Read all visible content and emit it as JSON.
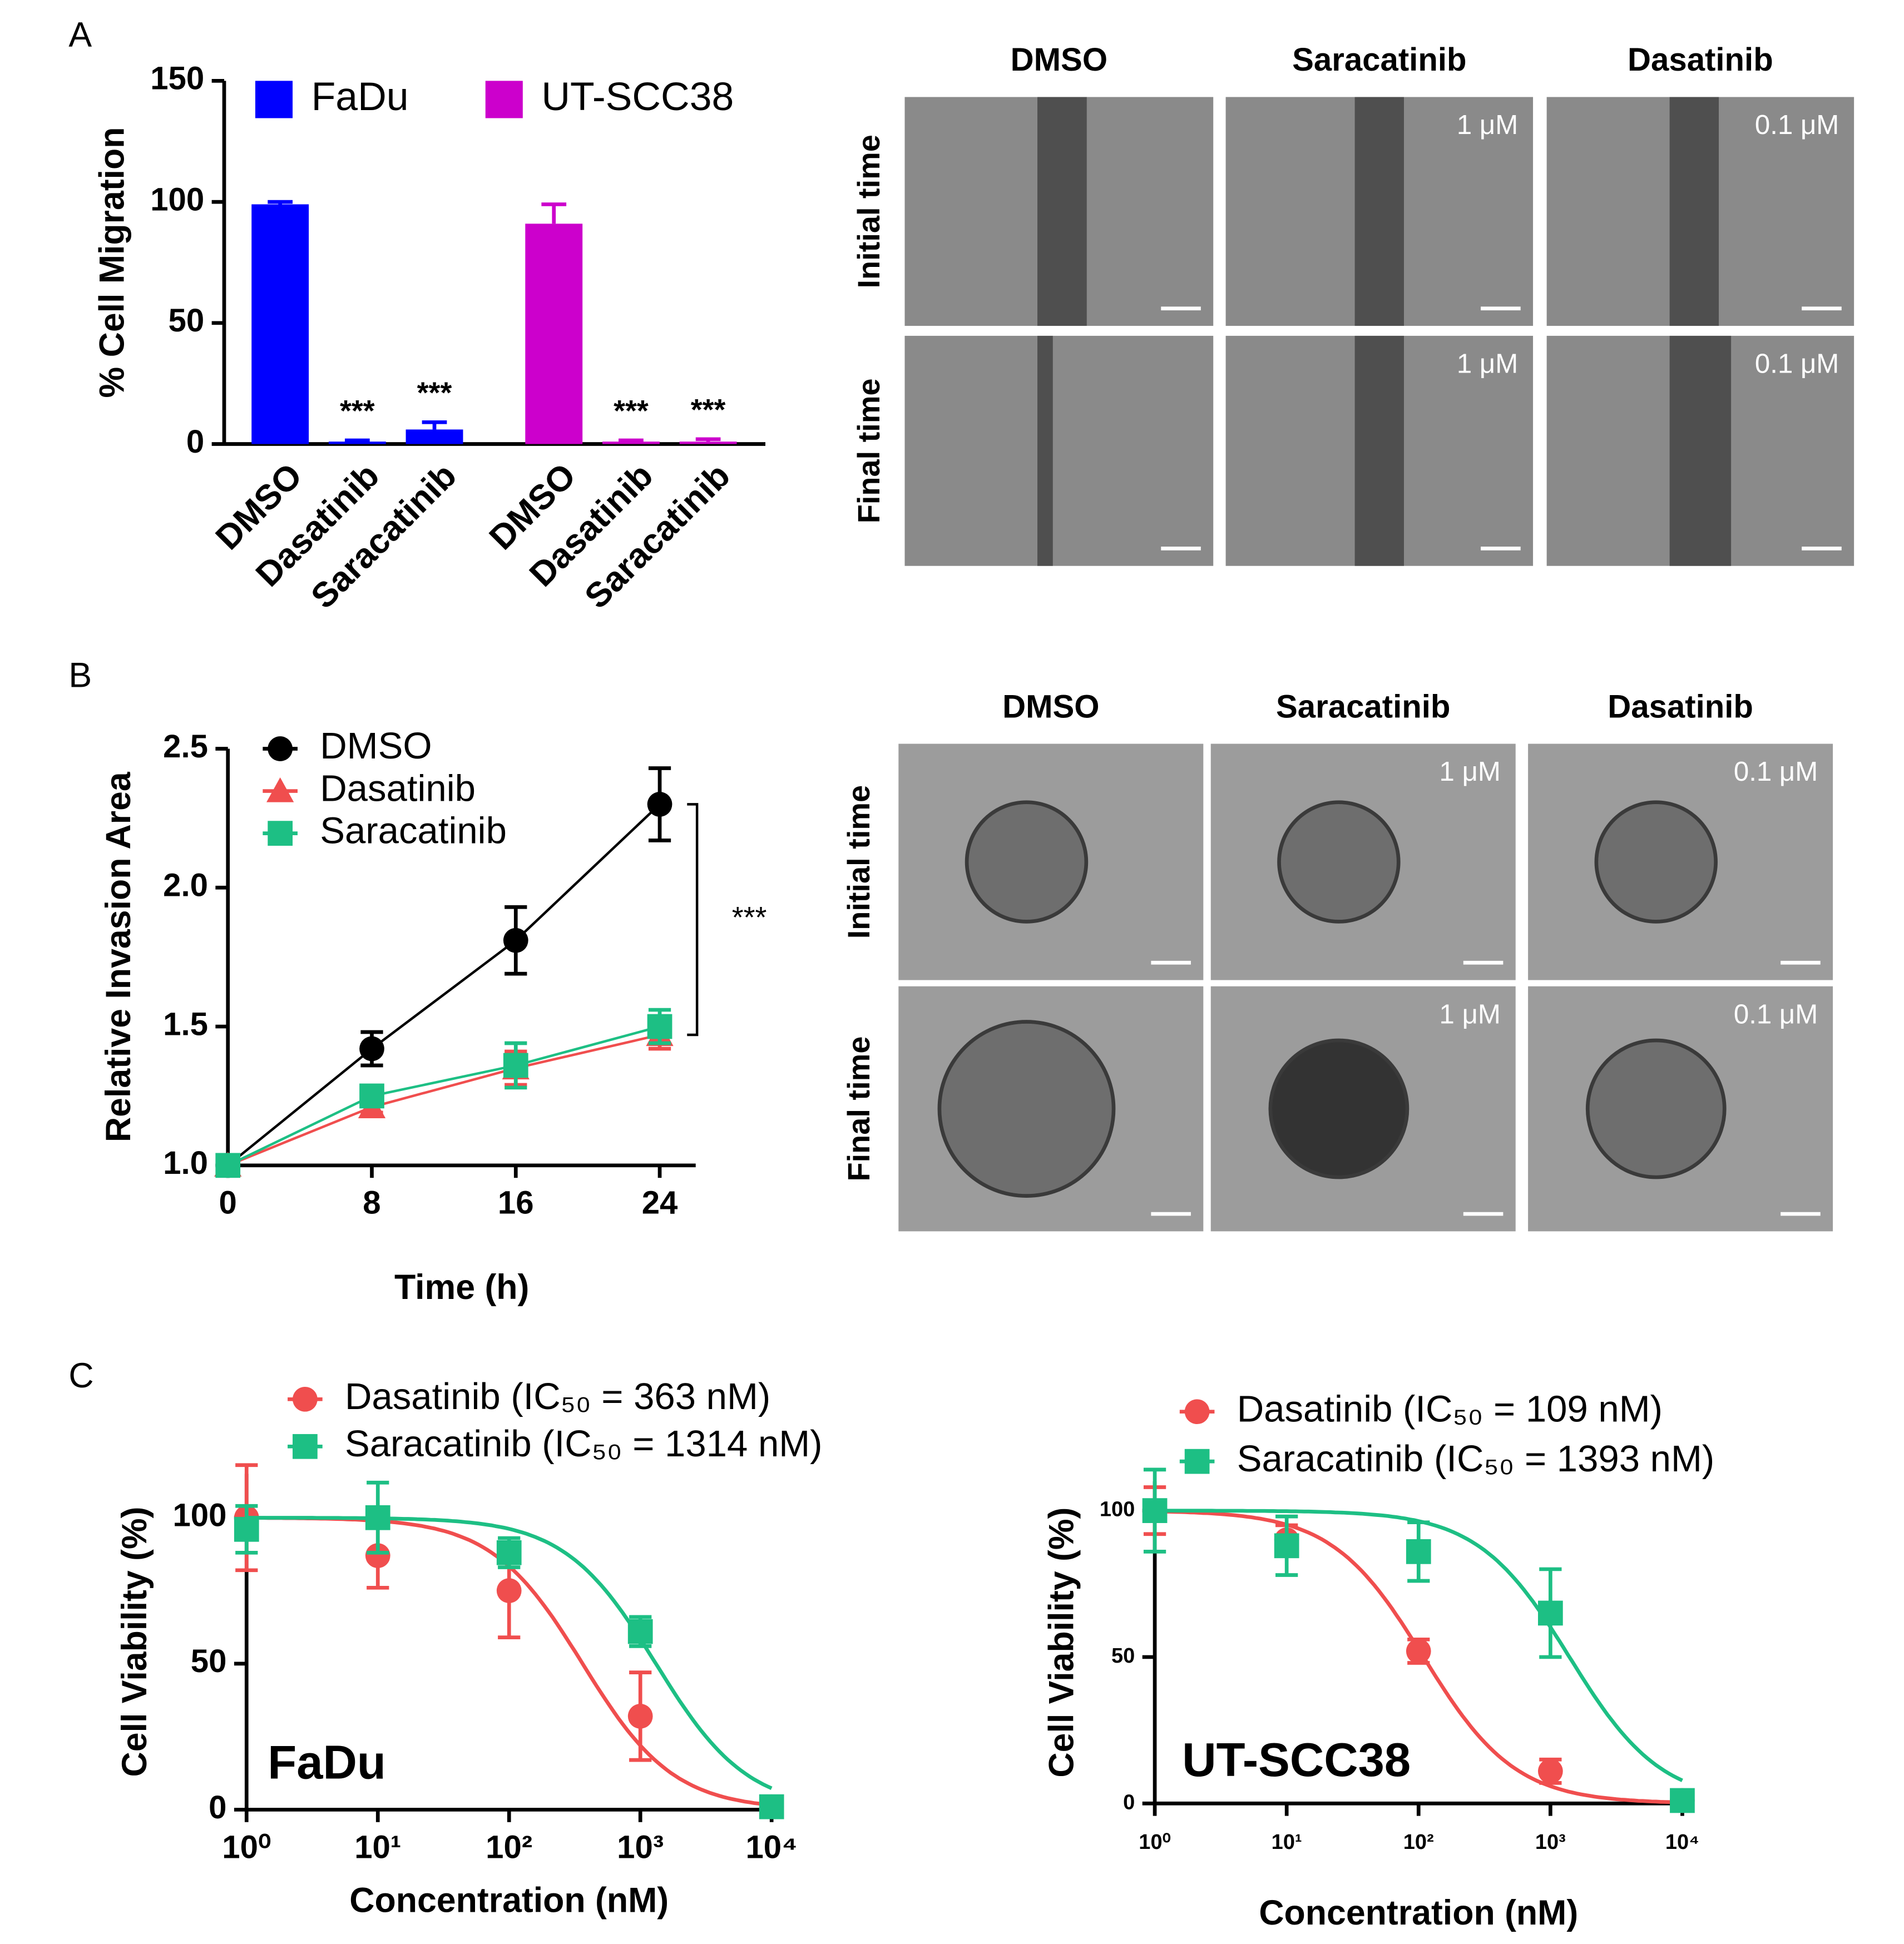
{
  "panels": [
    "A",
    "B",
    "C"
  ],
  "micrographs": [
    {
      "columns": [
        "DMSO",
        "Saracatinib",
        "Dasatinib"
      ],
      "rows": [
        "Initial time",
        "Final time"
      ],
      "doses": [
        null,
        "1 μM",
        "0.1 μM"
      ]
    },
    {
      "columns": [
        "DMSO",
        "Saracatinib",
        "Dasatinib"
      ],
      "rows": [
        "Initial time",
        "Final time"
      ],
      "doses": [
        null,
        "1 μM",
        "0.1 μM"
      ]
    }
  ],
  "chart_data": [
    {
      "type": "bar",
      "y_label": "% Cell Migration",
      "categories": [
        "DMSO",
        "Dasatinib",
        "Saracatinib",
        "DMSO",
        "Dasatinib",
        "Saracatinib"
      ],
      "series": [
        {
          "name": "FaDu",
          "color": "#0000ff",
          "values": [
            99,
            1,
            6,
            null,
            null,
            null
          ],
          "errors": [
            1,
            0.5,
            3,
            null,
            null,
            null
          ]
        },
        {
          "name": "UT-SCC38",
          "color": "#cc00cc",
          "values": [
            null,
            null,
            null,
            91,
            1,
            1
          ],
          "errors": [
            null,
            null,
            null,
            8,
            0.5,
            1
          ]
        }
      ],
      "significance": [
        null,
        "***",
        "***",
        null,
        "***",
        "***"
      ],
      "ylim": [
        0,
        150
      ],
      "yticks": [
        0,
        50,
        100,
        150
      ]
    },
    {
      "type": "line",
      "x_label": "Time (h)",
      "y_label": "Relative Invasion Area",
      "x": [
        0,
        8,
        16,
        24
      ],
      "series": [
        {
          "name": "DMSO",
          "color": "#000000",
          "marker": "circle",
          "values": [
            1,
            1.42,
            1.81,
            2.3
          ],
          "errors": [
            0.02,
            0.06,
            0.12,
            0.13
          ]
        },
        {
          "name": "Dasatinib",
          "color": "#f04e4e",
          "marker": "triangle",
          "values": [
            1,
            1.21,
            1.35,
            1.47
          ],
          "errors": [
            0.01,
            0.02,
            0.06,
            0.05
          ]
        },
        {
          "name": "Saracatinib",
          "color": "#1dbf84",
          "marker": "square",
          "values": [
            1,
            1.25,
            1.36,
            1.5
          ],
          "errors": [
            0.01,
            0.02,
            0.08,
            0.06
          ]
        }
      ],
      "annotation": "***",
      "xlim": [
        0,
        26
      ],
      "xticks": [
        0,
        8,
        16,
        24
      ],
      "ylim": [
        1,
        2.5
      ],
      "yticks": [
        {
          "value": 1,
          "label": "1.0"
        },
        {
          "value": 1.5,
          "label": "1.5"
        },
        {
          "value": 2,
          "label": "2.0"
        },
        {
          "value": 2.5,
          "label": "2.5"
        }
      ]
    },
    {
      "type": "scatter",
      "x_label": "Concentration (nM)",
      "y_label": "Cell Viability (%)",
      "annotation": "FaDu",
      "x": [
        1,
        10,
        100,
        1000,
        10000
      ],
      "log_x": true,
      "series": [
        {
          "name": "Dasatinib (IC₅₀ = 363 nM)",
          "ic50": 363,
          "color": "#f04e4e",
          "marker": "circle",
          "values": [
            100,
            87,
            75,
            32,
            1
          ],
          "errors": [
            18,
            11,
            16,
            15,
            1
          ]
        },
        {
          "name": "Saracatinib (IC₅₀ = 1314 nM)",
          "ic50": 1314,
          "color": "#1dbf84",
          "marker": "square",
          "values": [
            96,
            100,
            88,
            61,
            1
          ],
          "errors": [
            8,
            12,
            5,
            5,
            1
          ]
        }
      ],
      "xlim": [
        1,
        10000
      ],
      "xticks": [
        {
          "value": 1,
          "label": "10⁰"
        },
        {
          "value": 10,
          "label": "10¹"
        },
        {
          "value": 100,
          "label": "10²"
        },
        {
          "value": 1000,
          "label": "10³"
        },
        {
          "value": 10000,
          "label": "10⁴"
        }
      ],
      "ylim": [
        0,
        115
      ],
      "yticks": [
        0,
        50,
        100
      ]
    },
    {
      "type": "scatter",
      "x_label": "Concentration (nM)",
      "y_label": "Cell Viability (%)",
      "annotation": "UT-SCC38",
      "x": [
        1,
        10,
        100,
        1000,
        10000
      ],
      "log_x": true,
      "series": [
        {
          "name": "Dasatinib (IC₅₀ = 109 nM)",
          "ic50": 109,
          "color": "#f04e4e",
          "marker": "circle",
          "values": [
            100,
            90,
            52,
            11,
            1
          ],
          "errors": [
            8,
            5,
            4,
            4,
            1
          ]
        },
        {
          "name": "Saracatinib (IC₅₀ = 1393 nM)",
          "ic50": 1393,
          "color": "#1dbf84",
          "marker": "square",
          "values": [
            100,
            88,
            86,
            65,
            1
          ],
          "errors": [
            14,
            10,
            10,
            15,
            1
          ]
        }
      ],
      "xlim": [
        1,
        10000
      ],
      "xticks": [
        {
          "value": 1,
          "label": "10⁰"
        },
        {
          "value": 10,
          "label": "10¹"
        },
        {
          "value": 100,
          "label": "10²"
        },
        {
          "value": 1000,
          "label": "10³"
        },
        {
          "value": 10000,
          "label": "10⁴"
        }
      ],
      "ylim": [
        0,
        110
      ],
      "yticks": [
        0,
        50,
        100
      ]
    }
  ]
}
